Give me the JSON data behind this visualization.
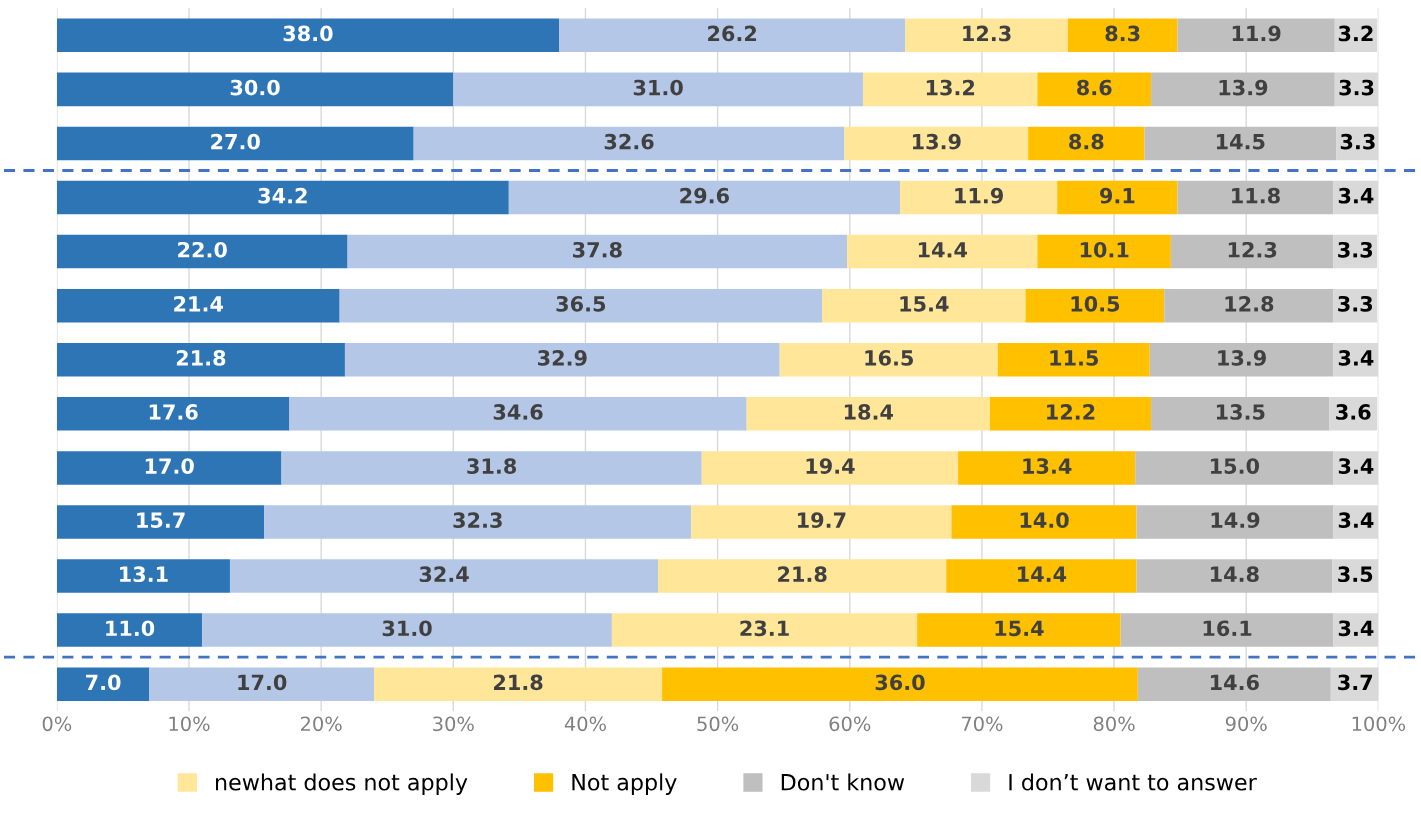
{
  "chart_data": {
    "type": "bar",
    "orientation": "horizontal",
    "stacked": true,
    "categories": [
      null,
      null,
      null,
      null,
      null,
      null,
      null,
      null,
      null,
      null,
      null,
      null,
      null
    ],
    "series": [
      {
        "color": "#2e75b6",
        "values": [
          38.0,
          30.0,
          27.0,
          34.2,
          22.0,
          21.4,
          21.8,
          17.6,
          17.0,
          15.7,
          13.1,
          11.0,
          7.0
        ],
        "value_labels": [
          "38.0",
          "30.0",
          "27.0",
          "34.2",
          "22.0",
          "21.4",
          "21.8",
          "17.6",
          "17.0",
          "15.7",
          "13.1",
          "11.0",
          "7.0"
        ]
      },
      {
        "color": "#b4c7e7",
        "values": [
          26.2,
          31.0,
          32.6,
          29.6,
          37.8,
          36.5,
          32.9,
          34.6,
          31.8,
          32.3,
          32.4,
          31.0,
          17.0
        ],
        "value_labels": [
          "26.2",
          "31.0",
          "32.6",
          "29.6",
          "37.8",
          "36.5",
          "32.9",
          "34.6",
          "31.8",
          "32.3",
          "32.4",
          "31.0",
          "17.0"
        ]
      },
      {
        "name": "newhat does not apply",
        "color": "#ffe699",
        "values": [
          12.3,
          13.2,
          13.9,
          11.9,
          14.4,
          15.4,
          16.5,
          18.4,
          19.4,
          19.7,
          21.8,
          23.1,
          21.8
        ],
        "value_labels": [
          "12.3",
          "13.2",
          "13.9",
          "11.9",
          "14.4",
          "15.4",
          "16.5",
          "18.4",
          "19.4",
          "19.7",
          "21.8",
          "23.1",
          "21.8"
        ]
      },
      {
        "name": "Not apply",
        "color": "#ffc000",
        "values": [
          8.3,
          8.6,
          8.8,
          9.1,
          10.1,
          10.5,
          11.5,
          12.2,
          13.4,
          14.0,
          14.4,
          15.4,
          36.0
        ],
        "value_labels": [
          "8.3",
          "8.6",
          "8.8",
          "9.1",
          "10.1",
          "10.5",
          "11.5",
          "12.2",
          "13.4",
          "14.0",
          "14.4",
          "15.4",
          "36.0"
        ]
      },
      {
        "name": "Don't know",
        "color": "#bfbfbf",
        "values": [
          11.9,
          13.9,
          14.5,
          11.8,
          12.3,
          12.8,
          13.9,
          13.5,
          15.0,
          14.9,
          14.8,
          16.1,
          14.6
        ],
        "value_labels": [
          "11.9",
          "13.9",
          "14.5",
          "11.8",
          "12.3",
          "12.8",
          "13.9",
          "13.5",
          "15.0",
          "14.9",
          "14.8",
          "16.1",
          "14.6"
        ]
      },
      {
        "name": "I don’t want to answer",
        "color": "#d9d9d9",
        "values": [
          3.2,
          3.3,
          3.3,
          3.4,
          3.3,
          3.3,
          3.4,
          3.6,
          3.4,
          3.4,
          3.5,
          3.4,
          3.7
        ],
        "value_labels": [
          "3.2",
          "3.3",
          "3.3",
          "3.4",
          "3.3",
          "3.3",
          "3.4",
          "3.6",
          "3.4",
          "3.4",
          "3.5",
          "3.4",
          "3.7"
        ]
      }
    ],
    "xlim": [
      0,
      100
    ],
    "xticks": [
      {
        "value": 0,
        "label": "0%"
      },
      {
        "value": 10,
        "label": "10%"
      },
      {
        "value": 20,
        "label": "20%"
      },
      {
        "value": 30,
        "label": "30%"
      },
      {
        "value": 40,
        "label": "40%"
      },
      {
        "value": 50,
        "label": "50%"
      },
      {
        "value": 60,
        "label": "60%"
      },
      {
        "value": 70,
        "label": "70%"
      },
      {
        "value": 80,
        "label": "80%"
      },
      {
        "value": 90,
        "label": "90%"
      },
      {
        "value": 100,
        "label": "100%"
      }
    ],
    "grid": "x",
    "legend": "bottom",
    "tick_labels": "x"
  }
}
